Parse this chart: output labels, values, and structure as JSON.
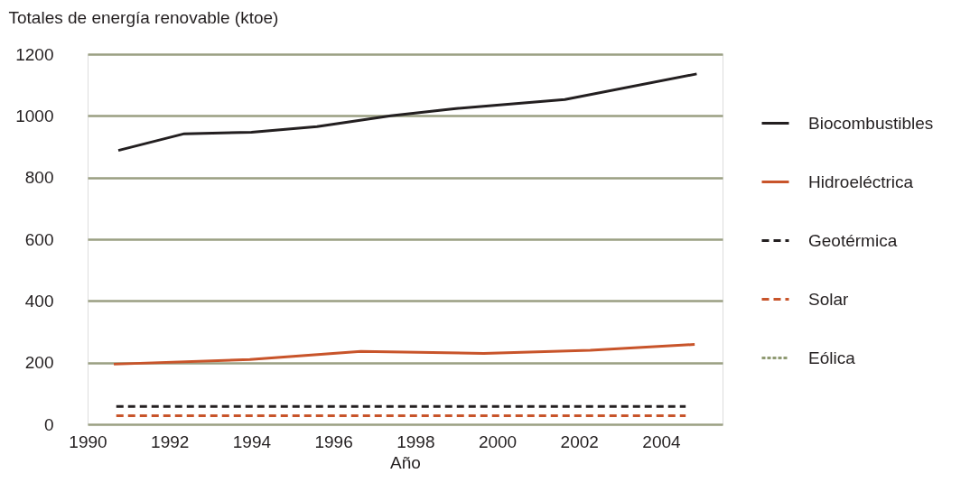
{
  "chart_data": {
    "type": "line",
    "ylabel": "Totales de energía renovable (ktoe)",
    "xlabel": "Año",
    "xlim": [
      1990,
      2005.5
    ],
    "xticks": [
      1990,
      1992,
      1994,
      1996,
      1998,
      2000,
      2002,
      2004
    ],
    "ylim": [
      0,
      1200
    ],
    "yticks": [
      0,
      200,
      400,
      600,
      800,
      1000,
      1200
    ],
    "grid": "y",
    "legend": "right",
    "series": [
      {
        "name": "Biocombustibles",
        "color": "#231f20",
        "line_style": "solid",
        "x": [
          1990.75,
          1992.36,
          1994.0,
          1995.6,
          1997.4,
          1998.94,
          2001.65,
          2004.87
        ],
        "values": [
          888,
          942,
          947,
          965,
          1000,
          1023,
          1053,
          1136
        ]
      },
      {
        "name": "Hidroeléctrica",
        "color": "#c8542a",
        "line_style": "solid",
        "x": [
          1990.64,
          1993.96,
          1996.67,
          1999.67,
          2002.27,
          2004.82
        ],
        "values": [
          195,
          210,
          236,
          230,
          240,
          259
        ]
      },
      {
        "name": "Geotérmica",
        "color": "#231f20",
        "line_style": "dashed",
        "x": [
          1990.7,
          2004.6
        ],
        "values": [
          58,
          58
        ]
      },
      {
        "name": "Solar",
        "color": "#c8542a",
        "line_style": "dashed",
        "x": [
          1990.7,
          2004.6
        ],
        "values": [
          28,
          28
        ]
      },
      {
        "name": "Eólica",
        "color": "#8f9a72",
        "line_style": "dotted"
      }
    ]
  }
}
